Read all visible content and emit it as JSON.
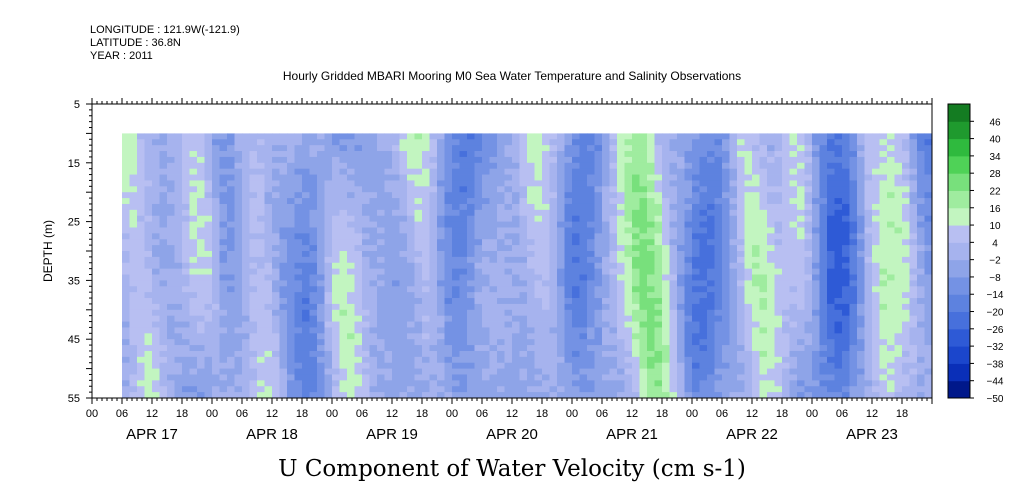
{
  "meta": {
    "longitude": "LONGITUDE : 121.9W(-121.9)",
    "latitude": "LATITUDE : 36.8N",
    "year": "YEAR : 2011"
  },
  "chart_data": {
    "type": "heatmap",
    "title": "Hourly Gridded MBARI Mooring M0 Sea Water Temperature and Salinity Observations",
    "xlabel": "U Component of Water Velocity (cm s-1)",
    "ylabel": "DEPTH (m)",
    "y_ticks": [
      5,
      15,
      25,
      35,
      45,
      55
    ],
    "y_range": [
      5,
      55
    ],
    "y_data_range": [
      10,
      55
    ],
    "x_start": "APR 17 00",
    "x_end": "APR 24 00",
    "x_data_start_hour": 6,
    "x_data_end_hour": 167,
    "x_hour_ticks": [
      "00",
      "06",
      "12",
      "18",
      "00",
      "06",
      "12",
      "18",
      "00",
      "06",
      "12",
      "18",
      "00",
      "06",
      "12",
      "18",
      "00",
      "06",
      "12",
      "18",
      "00",
      "06",
      "12",
      "18",
      "00",
      "06",
      "12",
      "18"
    ],
    "x_day_labels": [
      "APR 17",
      "APR 18",
      "APR 19",
      "APR 20",
      "APR 21",
      "APR 22",
      "APR 23"
    ],
    "colorbar": {
      "levels": [
        -50,
        -44,
        -38,
        -32,
        -26,
        -20,
        -14,
        -8,
        -2,
        4,
        10,
        16,
        22,
        28,
        34,
        40,
        46
      ],
      "colors": [
        "#000c50",
        "#00188a",
        "#0a2fb8",
        "#1b46cc",
        "#2e5ad6",
        "#4770dc",
        "#5d82df",
        "#7492e4",
        "#8ea4e8",
        "#a6b3ee",
        "#b8bff2",
        "#c2f5c0",
        "#9fec9f",
        "#78e07c",
        "#4fd257",
        "#2fba3e",
        "#1f9a2e",
        "#147c22",
        "#0c5e19"
      ],
      "range": [
        -50,
        52
      ]
    },
    "pattern_note_values": {
      "dominant_positive_bands_hours": [
        8,
        22,
        32,
        48,
        66,
        90,
        108,
        112,
        132,
        142,
        156,
        162
      ],
      "dominant_negative_bands_hours": [
        26,
        44,
        72,
        96,
        122,
        146,
        150,
        166
      ]
    }
  }
}
